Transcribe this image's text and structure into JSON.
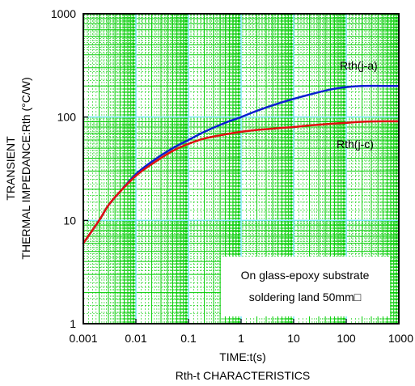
{
  "colors": {
    "grid_minor": "#00cc00",
    "grid_major": "#7fe7ff",
    "frame": "#000000",
    "rth_ja": "#0b1fd0",
    "rth_jc": "#e01010",
    "annotation_box": "#ffffff"
  },
  "chart_data": {
    "type": "line",
    "title": "",
    "caption": "Rth-t CHARACTERISTICS",
    "xlabel": "TIME:t(s)",
    "ylabel_lines": [
      "TRANSIENT",
      "THERMAL IMPEDANCE:Rth (°C/W)"
    ],
    "xscale": "log",
    "yscale": "log",
    "xlim": [
      0.001,
      1000
    ],
    "ylim": [
      1,
      1000
    ],
    "x_tick_values": [
      0.001,
      0.01,
      0.1,
      1,
      10,
      100,
      1000
    ],
    "x_tick_labels": [
      "0.001",
      "0.01",
      "0.1",
      "1",
      "10",
      "100",
      "1000"
    ],
    "y_tick_values": [
      1,
      10,
      100,
      1000
    ],
    "y_tick_labels": [
      "1",
      "10",
      "100",
      "1000"
    ],
    "grid": true,
    "annotation": [
      "On glass-epoxy substrate",
      "soldering land 50mm□"
    ],
    "series": [
      {
        "name": "Rth(j-a)",
        "color_key": "rth_ja",
        "x": [
          0.001,
          0.002,
          0.003,
          0.005,
          0.01,
          0.02,
          0.05,
          0.1,
          0.2,
          0.5,
          1,
          2,
          5,
          10,
          20,
          50,
          100,
          200,
          500,
          1000
        ],
        "y": [
          6,
          10,
          14,
          19,
          28,
          37,
          50,
          60,
          72,
          88,
          100,
          115,
          135,
          150,
          165,
          185,
          195,
          200,
          200,
          200
        ]
      },
      {
        "name": "Rth(j-c)",
        "color_key": "rth_jc",
        "x": [
          0.001,
          0.002,
          0.003,
          0.005,
          0.01,
          0.02,
          0.05,
          0.1,
          0.2,
          0.5,
          1,
          2,
          5,
          10,
          20,
          50,
          100,
          200,
          500,
          1000
        ],
        "y": [
          6,
          10,
          14,
          19,
          27,
          35,
          47,
          55,
          62,
          68,
          72,
          75,
          78,
          80,
          83,
          86,
          88,
          90,
          91,
          91
        ]
      }
    ]
  }
}
